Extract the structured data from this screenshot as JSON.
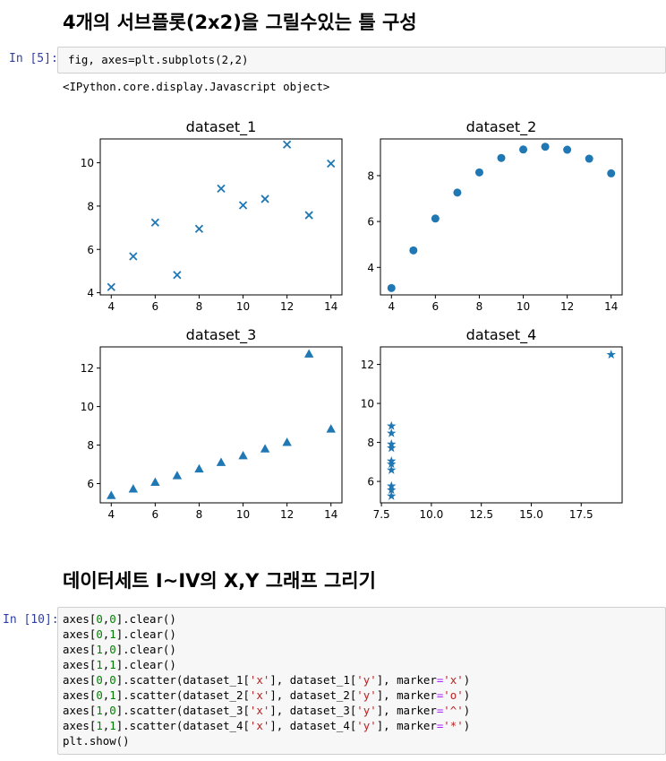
{
  "heading1": "4개의 서브플롯(2x2)을 그릴수있는 틀 구성",
  "cell1": {
    "prompt": "In [5]:",
    "code": "fig, axes=plt.subplots(2,2)",
    "output": "<IPython.core.display.Javascript object>"
  },
  "heading2": "데이터세트 I~IV의 X,Y 그래프 그리기",
  "cell2": {
    "prompt": "In [10]:",
    "lines": [
      "axes[0,0].clear()",
      "axes[0,1].clear()",
      "axes[1,0].clear()",
      "axes[1,1].clear()",
      "axes[0,0].scatter(dataset_1['x'], dataset_1['y'], marker='x')",
      "axes[0,1].scatter(dataset_2['x'], dataset_2['y'], marker='o')",
      "axes[1,0].scatter(dataset_3['x'], dataset_3['y'], marker='^')",
      "axes[1,1].scatter(dataset_4['x'], dataset_4['y'], marker='*')",
      "plt.show()"
    ]
  },
  "colors": {
    "marker": "#1f77b4",
    "prompt": "#303f9f",
    "string": "#ba2121",
    "number": "#008000"
  },
  "chart_data": [
    {
      "type": "scatter",
      "title": "dataset_1",
      "marker": "x",
      "x": [
        10,
        8,
        13,
        9,
        11,
        14,
        6,
        4,
        12,
        7,
        5
      ],
      "y": [
        8.04,
        6.95,
        7.58,
        8.81,
        8.33,
        9.96,
        7.24,
        4.26,
        10.84,
        4.82,
        5.68
      ],
      "xlim": [
        3.5,
        14.5
      ],
      "ylim": [
        3.9,
        11.1
      ],
      "xticks": [
        4,
        6,
        8,
        10,
        12,
        14
      ],
      "yticks": [
        4,
        6,
        8,
        10
      ],
      "xticklabels": [
        "4",
        "6",
        "8",
        "10",
        "12",
        "14"
      ],
      "yticklabels": [
        "4",
        "6",
        "8",
        "10"
      ]
    },
    {
      "type": "scatter",
      "title": "dataset_2",
      "marker": "o",
      "x": [
        10,
        8,
        13,
        9,
        11,
        14,
        6,
        4,
        12,
        7,
        5
      ],
      "y": [
        9.14,
        8.14,
        8.74,
        8.77,
        9.26,
        8.1,
        6.13,
        3.1,
        9.13,
        7.26,
        4.74
      ],
      "xlim": [
        3.5,
        14.5
      ],
      "ylim": [
        2.8,
        9.6
      ],
      "xticks": [
        4,
        6,
        8,
        10,
        12,
        14
      ],
      "yticks": [
        4,
        6,
        8
      ],
      "xticklabels": [
        "4",
        "6",
        "8",
        "10",
        "12",
        "14"
      ],
      "yticklabels": [
        "4",
        "6",
        "8"
      ]
    },
    {
      "type": "scatter",
      "title": "dataset_3",
      "marker": "^",
      "x": [
        10,
        8,
        13,
        9,
        11,
        14,
        6,
        4,
        12,
        7,
        5
      ],
      "y": [
        7.46,
        6.77,
        12.74,
        7.11,
        7.81,
        8.84,
        6.08,
        5.39,
        8.15,
        6.42,
        5.73
      ],
      "xlim": [
        3.5,
        14.5
      ],
      "ylim": [
        5.0,
        13.1
      ],
      "xticks": [
        4,
        6,
        8,
        10,
        12,
        14
      ],
      "yticks": [
        6,
        8,
        10,
        12
      ],
      "xticklabels": [
        "4",
        "6",
        "8",
        "10",
        "12",
        "14"
      ],
      "yticklabels": [
        "6",
        "8",
        "10",
        "12"
      ]
    },
    {
      "type": "scatter",
      "title": "dataset_4",
      "marker": "*",
      "x": [
        8,
        8,
        8,
        8,
        8,
        8,
        8,
        19,
        8,
        8,
        8
      ],
      "y": [
        6.58,
        5.76,
        7.71,
        8.84,
        8.47,
        7.04,
        5.25,
        12.5,
        5.56,
        7.91,
        6.89
      ],
      "xlim": [
        7.45,
        19.55
      ],
      "ylim": [
        4.9,
        12.9
      ],
      "xticks": [
        7.5,
        10.0,
        12.5,
        15.0,
        17.5
      ],
      "yticks": [
        6,
        8,
        10,
        12
      ],
      "xticklabels": [
        "7.5",
        "10.0",
        "12.5",
        "15.0",
        "17.5"
      ],
      "yticklabels": [
        "6",
        "8",
        "10",
        "12"
      ]
    }
  ]
}
